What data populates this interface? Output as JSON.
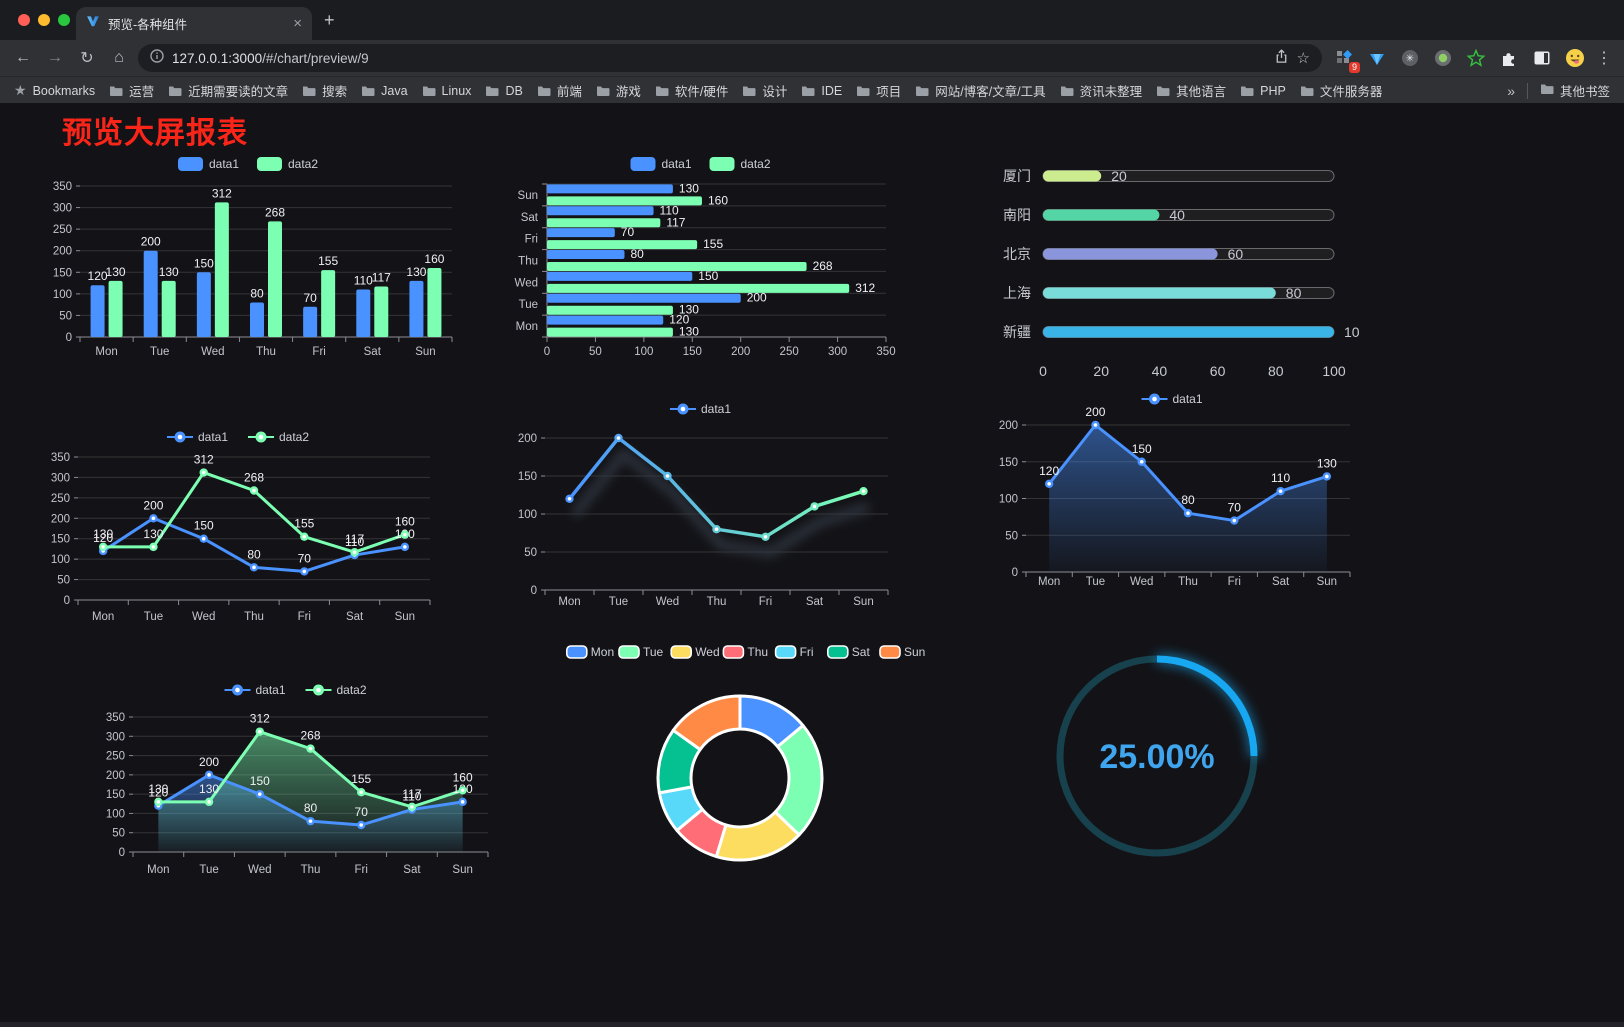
{
  "browser": {
    "tab": {
      "title": "预览-各种组件",
      "close": "×",
      "new_tab": "+"
    },
    "address": {
      "url_host": "127.0.0.1:3000",
      "url_path": "/#/chart/preview/9"
    },
    "bookmarks": {
      "label": "Bookmarks",
      "folders": [
        "运营",
        "近期需要读的文章",
        "搜索",
        "Java",
        "Linux",
        "DB",
        "前端",
        "游戏",
        "软件/硬件",
        "设计",
        "IDE",
        "项目",
        "网站/博客/文章/工具",
        "资讯未整理",
        "其他语言",
        "PHP",
        "文件服务器"
      ],
      "overflow": "»",
      "other": "其他书签"
    },
    "extensions_badge": "9"
  },
  "page": {
    "title": "预览大屏报表",
    "title_color": "#fa2519",
    "background": "#131317"
  },
  "theme": {
    "axis": "#8c8c96",
    "grid": "rgba(255,255,255,0.14)",
    "tick_text": "#c4c4ce",
    "value_text": "#f1f1f5"
  },
  "palette": {
    "blue": "#4992ff",
    "green": "#7cffb2",
    "yellow": "#fddd60",
    "red": "#ff6e76",
    "cyan": "#58d9f9",
    "teal": "#05c091",
    "orange": "#ff8a45"
  },
  "chart_data": [
    {
      "id": "bar-vertical",
      "type": "bar",
      "orientation": "vertical",
      "categories": [
        "Mon",
        "Tue",
        "Wed",
        "Thu",
        "Fri",
        "Sat",
        "Sun"
      ],
      "series": [
        {
          "name": "data1",
          "color": "#4992ff",
          "values": [
            120,
            200,
            150,
            80,
            70,
            110,
            130
          ]
        },
        {
          "name": "data2",
          "color": "#7cffb2",
          "values": [
            130,
            130,
            312,
            268,
            155,
            117,
            160
          ]
        }
      ],
      "ylim": [
        0,
        350
      ],
      "y_ticks": [
        0,
        50,
        100,
        150,
        200,
        250,
        300,
        350
      ],
      "value_labels": true,
      "legend": [
        "data1",
        "data2"
      ],
      "legend_position": "top"
    },
    {
      "id": "bar-horizontal",
      "type": "bar",
      "orientation": "horizontal",
      "categories": [
        "Mon",
        "Tue",
        "Wed",
        "Thu",
        "Fri",
        "Sat",
        "Sun"
      ],
      "display_top_to_bottom": [
        "Sun",
        "Sat",
        "Fri",
        "Thu",
        "Wed",
        "Tue",
        "Mon"
      ],
      "series": [
        {
          "name": "data1",
          "color": "#4992ff",
          "values": [
            120,
            200,
            150,
            80,
            70,
            110,
            130
          ]
        },
        {
          "name": "data2",
          "color": "#7cffb2",
          "values": [
            130,
            130,
            312,
            268,
            155,
            117,
            160
          ]
        }
      ],
      "xlim": [
        0,
        350
      ],
      "x_ticks": [
        0,
        50,
        100,
        150,
        200,
        250,
        300,
        350
      ],
      "value_labels": true,
      "legend": [
        "data1",
        "data2"
      ],
      "legend_position": "top"
    },
    {
      "id": "progress-list",
      "type": "bar",
      "orientation": "horizontal",
      "style": "progress",
      "items": [
        {
          "label": "厦门",
          "value": 20,
          "color": "#cdeb8f"
        },
        {
          "label": "南阳",
          "value": 40,
          "color": "#54d5a5"
        },
        {
          "label": "北京",
          "value": 60,
          "color": "#8b95dc"
        },
        {
          "label": "上海",
          "value": 80,
          "color": "#79dcd9"
        },
        {
          "label": "新疆",
          "value": 100,
          "color": "#3ab3e6"
        }
      ],
      "xlim": [
        0,
        100
      ],
      "x_ticks": [
        0,
        20,
        40,
        60,
        80,
        100
      ]
    },
    {
      "id": "line-two",
      "type": "line",
      "categories": [
        "Mon",
        "Tue",
        "Wed",
        "Thu",
        "Fri",
        "Sat",
        "Sun"
      ],
      "series": [
        {
          "name": "data1",
          "color": "#4992ff",
          "values": [
            120,
            200,
            150,
            80,
            70,
            110,
            130
          ]
        },
        {
          "name": "data2",
          "color": "#7cffb2",
          "values": [
            130,
            130,
            312,
            268,
            155,
            117,
            160
          ]
        }
      ],
      "ylim": [
        0,
        350
      ],
      "y_ticks": [
        0,
        50,
        100,
        150,
        200,
        250,
        300,
        350
      ],
      "value_labels": true,
      "legend": [
        "data1",
        "data2"
      ],
      "legend_position": "top"
    },
    {
      "id": "line-gradient",
      "type": "line",
      "categories": [
        "Mon",
        "Tue",
        "Wed",
        "Thu",
        "Fri",
        "Sat",
        "Sun"
      ],
      "series": [
        {
          "name": "data1",
          "color": "#4992ff",
          "stroke_gradient": [
            "#4992ff",
            "#7cffb2"
          ],
          "values": [
            120,
            200,
            150,
            80,
            70,
            110,
            130
          ]
        }
      ],
      "ylim": [
        0,
        200
      ],
      "y_ticks": [
        0,
        50,
        100,
        150,
        200
      ],
      "value_labels": false,
      "shadow": true,
      "legend": [
        "data1"
      ],
      "legend_position": "top"
    },
    {
      "id": "area-single",
      "type": "area",
      "categories": [
        "Mon",
        "Tue",
        "Wed",
        "Thu",
        "Fri",
        "Sat",
        "Sun"
      ],
      "series": [
        {
          "name": "data1",
          "color": "#4992ff",
          "values": [
            120,
            200,
            150,
            80,
            70,
            110,
            130
          ],
          "area": true
        }
      ],
      "ylim": [
        0,
        200
      ],
      "y_ticks": [
        0,
        50,
        100,
        150,
        200
      ],
      "value_labels": true,
      "legend": [
        "data1"
      ],
      "legend_position": "top"
    },
    {
      "id": "area-two",
      "type": "area",
      "categories": [
        "Mon",
        "Tue",
        "Wed",
        "Thu",
        "Fri",
        "Sat",
        "Sun"
      ],
      "series": [
        {
          "name": "data1",
          "color": "#4992ff",
          "values": [
            120,
            200,
            150,
            80,
            70,
            110,
            130
          ],
          "area": true
        },
        {
          "name": "data2",
          "color": "#7cffb2",
          "values": [
            130,
            130,
            312,
            268,
            155,
            117,
            160
          ],
          "area": true
        }
      ],
      "ylim": [
        0,
        350
      ],
      "y_ticks": [
        0,
        50,
        100,
        150,
        200,
        250,
        300,
        350
      ],
      "value_labels": true,
      "legend": [
        "data1",
        "data2"
      ],
      "legend_position": "top"
    },
    {
      "id": "donut",
      "type": "pie",
      "shape": "donut",
      "legend": [
        "Mon",
        "Tue",
        "Wed",
        "Thu",
        "Fri",
        "Sat",
        "Sun"
      ],
      "slices": [
        {
          "label": "Mon",
          "value": 120,
          "color": "#4992ff"
        },
        {
          "label": "Tue",
          "value": 200,
          "color": "#7cffb2"
        },
        {
          "label": "Wed",
          "value": 150,
          "color": "#fddd60"
        },
        {
          "label": "Thu",
          "value": 80,
          "color": "#ff6e76"
        },
        {
          "label": "Fri",
          "value": 70,
          "color": "#58d9f9"
        },
        {
          "label": "Sat",
          "value": 110,
          "color": "#05c091"
        },
        {
          "label": "Sun",
          "value": 130,
          "color": "#ff8a45"
        }
      ],
      "border_color": "#ffffff"
    },
    {
      "id": "gauge",
      "type": "gauge",
      "percent": 25,
      "display": "25.00%",
      "color": "#18a8f2",
      "track_color": "#17414d",
      "text_color": "#3fa5ee"
    }
  ]
}
